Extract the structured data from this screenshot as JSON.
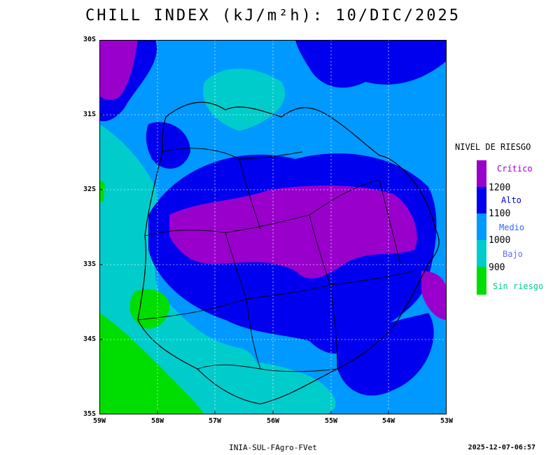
{
  "title": "CHILL INDEX (kJ/m²h): 10/DIC/2025",
  "map": {
    "y_ticks": [
      "30S",
      "31S",
      "32S",
      "33S",
      "34S",
      "35S"
    ],
    "x_ticks": [
      "59W",
      "58W",
      "57W",
      "56W",
      "55W",
      "54W",
      "53W"
    ],
    "grid": "dotted"
  },
  "legend": {
    "title": "NIVEL DE RIESGO",
    "categories": [
      {
        "label": "Crítico",
        "color": "#9900cc",
        "label_color": "#9900cc"
      },
      {
        "label": "Alto",
        "color": "#0000ee",
        "label_color": "#0000ee"
      },
      {
        "label": "Medio",
        "color": "#0099ff",
        "label_color": "#3366ff"
      },
      {
        "label": "Bajo",
        "color": "#00cccc",
        "label_color": "#6666ff"
      },
      {
        "label": "Sin riesgo",
        "color": "#00dd00",
        "label_color": "#00cc99"
      }
    ],
    "thresholds": [
      "1200",
      "1100",
      "1000",
      "900"
    ]
  },
  "footer": {
    "credit": "INIA-SUL-FAgro-FVet",
    "timestamp": "2025-12-07-06:57"
  }
}
